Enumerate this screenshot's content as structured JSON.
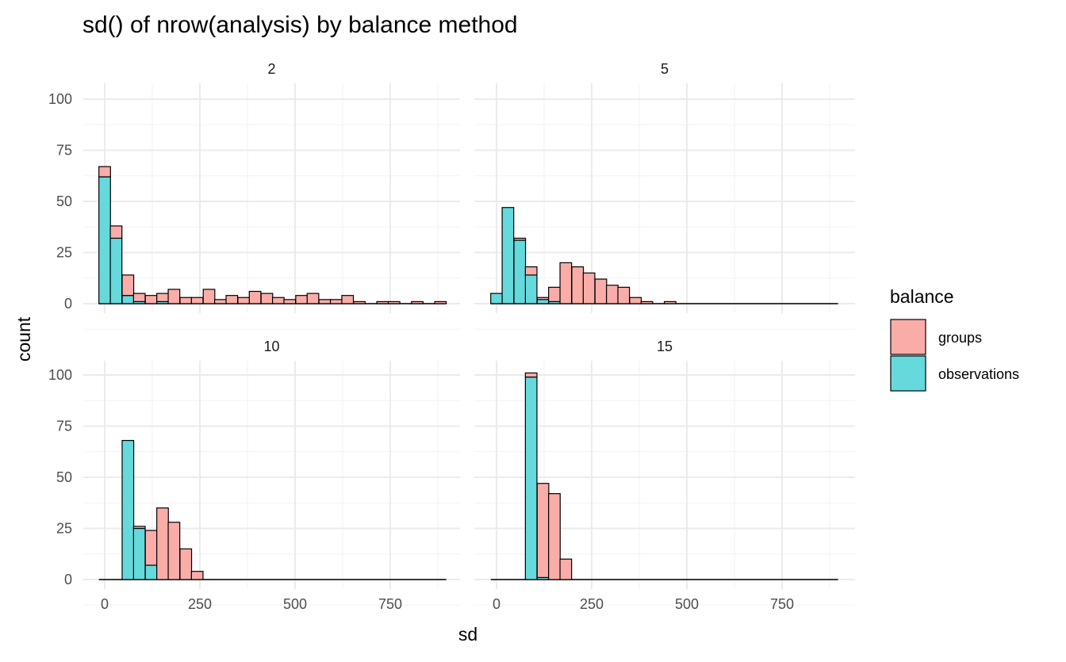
{
  "chart_data": {
    "type": "bar",
    "subtype": "stacked histogram, faceted",
    "title": "sd() of nrow(analysis) by balance method",
    "xlabel": "sd",
    "ylabel": "count",
    "xlim": [
      -15,
      897
    ],
    "ylim": [
      0,
      100
    ],
    "x_ticks": [
      "0",
      "250",
      "500",
      "750"
    ],
    "y_ticks": [
      "0",
      "25",
      "50",
      "75",
      "100"
    ],
    "grid": true,
    "legend": {
      "title": "balance",
      "position": "right",
      "entries": [
        {
          "name": "groups",
          "color": "#F8766D"
        },
        {
          "name": "observations",
          "color": "#00BFC4"
        }
      ]
    },
    "bin_width": 30.4,
    "x": [
      0,
      30,
      61,
      91,
      122,
      152,
      182,
      213,
      243,
      274,
      304,
      334,
      365,
      395,
      426,
      456,
      486,
      517,
      547,
      578,
      608,
      638,
      669,
      699,
      730,
      760,
      790,
      821,
      851,
      882
    ],
    "facets": [
      {
        "label": "2",
        "series": [
          {
            "name": "groups",
            "values": [
              5,
              6,
              10,
              4,
              4,
              4,
              7,
              3,
              3,
              7,
              2,
              4,
              3,
              6,
              5,
              3,
              2,
              4,
              5,
              2,
              2,
              4,
              1,
              0,
              1,
              1,
              0,
              1,
              0,
              1
            ]
          },
          {
            "name": "observations",
            "values": [
              62,
              32,
              4,
              1,
              0,
              1,
              0,
              0,
              0,
              0,
              0,
              0,
              0,
              0,
              0,
              0,
              0,
              0,
              0,
              0,
              0,
              0,
              0,
              0,
              0,
              0,
              0,
              0,
              0,
              0
            ]
          }
        ]
      },
      {
        "label": "5",
        "series": [
          {
            "name": "groups",
            "values": [
              0,
              0,
              1,
              4,
              1,
              7,
              20,
              18,
              15,
              12,
              9,
              8,
              3,
              1,
              0,
              1,
              0,
              0,
              0,
              0,
              0,
              0,
              0,
              0,
              0,
              0,
              0,
              0,
              0,
              0
            ]
          },
          {
            "name": "observations",
            "values": [
              5,
              47,
              31,
              14,
              2,
              1,
              0,
              0,
              0,
              0,
              0,
              0,
              0,
              0,
              0,
              0,
              0,
              0,
              0,
              0,
              0,
              0,
              0,
              0,
              0,
              0,
              0,
              0,
              0,
              0
            ]
          }
        ]
      },
      {
        "label": "10",
        "series": [
          {
            "name": "groups",
            "values": [
              0,
              0,
              0,
              1,
              17,
              35,
              28,
              15,
              4,
              0,
              0,
              0,
              0,
              0,
              0,
              0,
              0,
              0,
              0,
              0,
              0,
              0,
              0,
              0,
              0,
              0,
              0,
              0,
              0,
              0
            ]
          },
          {
            "name": "observations",
            "values": [
              0,
              0,
              68,
              25,
              7,
              0,
              0,
              0,
              0,
              0,
              0,
              0,
              0,
              0,
              0,
              0,
              0,
              0,
              0,
              0,
              0,
              0,
              0,
              0,
              0,
              0,
              0,
              0,
              0,
              0
            ]
          }
        ]
      },
      {
        "label": "15",
        "series": [
          {
            "name": "groups",
            "values": [
              0,
              0,
              0,
              2,
              46,
              42,
              10,
              0,
              0,
              0,
              0,
              0,
              0,
              0,
              0,
              0,
              0,
              0,
              0,
              0,
              0,
              0,
              0,
              0,
              0,
              0,
              0,
              0,
              0,
              0
            ]
          },
          {
            "name": "observations",
            "values": [
              0,
              0,
              0,
              99,
              1,
              0,
              0,
              0,
              0,
              0,
              0,
              0,
              0,
              0,
              0,
              0,
              0,
              0,
              0,
              0,
              0,
              0,
              0,
              0,
              0,
              0,
              0,
              0,
              0,
              0
            ]
          }
        ]
      }
    ]
  }
}
